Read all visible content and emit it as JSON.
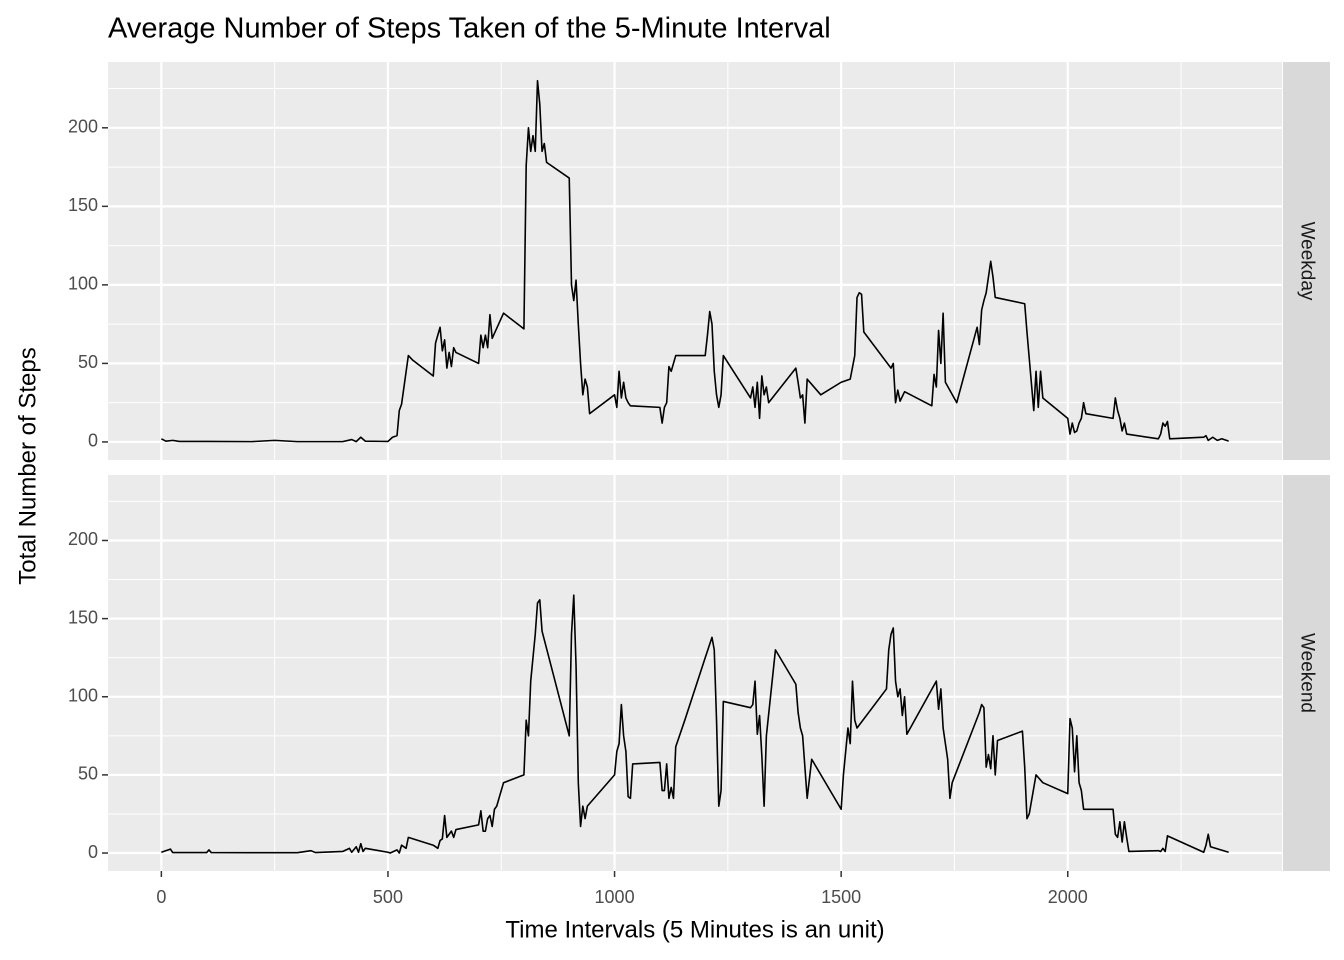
{
  "chart_data": {
    "type": "line",
    "title": "Average Number of Steps Taken of the 5-Minute Interval",
    "x_label": "Time Intervals (5 Minutes is an unit)",
    "y_label": "Total Number of Steps",
    "facet": "rows",
    "grid": true,
    "xlim": [
      -117.75,
      2472.75
    ],
    "xticks": [
      0,
      500,
      1000,
      1500,
      2000
    ],
    "ylim": [
      -11.5,
      241.9
    ],
    "yticks": [
      0,
      50,
      100,
      150,
      200
    ],
    "series": [
      {
        "name": "Weekday",
        "color": "#000000",
        "x": [
          0,
          10,
          25,
          40,
          100,
          200,
          250,
          300,
          400,
          420,
          430,
          440,
          450,
          500,
          510,
          520,
          525,
          530,
          545,
          555,
          600,
          605,
          615,
          620,
          625,
          630,
          635,
          640,
          645,
          650,
          700,
          705,
          710,
          715,
          720,
          725,
          730,
          755,
          800,
          805,
          810,
          815,
          820,
          825,
          830,
          835,
          840,
          845,
          850,
          900,
          905,
          910,
          915,
          920,
          925,
          930,
          935,
          940,
          945,
          1000,
          1005,
          1010,
          1015,
          1020,
          1025,
          1030,
          1035,
          1100,
          1105,
          1110,
          1115,
          1120,
          1125,
          1135,
          1155,
          1200,
          1205,
          1210,
          1215,
          1220,
          1225,
          1230,
          1235,
          1240,
          1300,
          1305,
          1310,
          1315,
          1320,
          1325,
          1330,
          1335,
          1340,
          1400,
          1405,
          1410,
          1415,
          1420,
          1425,
          1455,
          1500,
          1520,
          1530,
          1535,
          1540,
          1545,
          1550,
          1610,
          1615,
          1620,
          1625,
          1630,
          1640,
          1700,
          1705,
          1710,
          1715,
          1720,
          1725,
          1730,
          1755,
          1800,
          1805,
          1810,
          1815,
          1820,
          1830,
          1835,
          1840,
          1905,
          1910,
          1925,
          1930,
          1935,
          1940,
          1945,
          2000,
          2005,
          2010,
          2015,
          2020,
          2025,
          2030,
          2035,
          2040,
          2100,
          2105,
          2110,
          2115,
          2120,
          2125,
          2130,
          2200,
          2205,
          2210,
          2215,
          2220,
          2225,
          2300,
          2305,
          2310,
          2320,
          2330,
          2340,
          2355
        ],
        "values": [
          2,
          0.5,
          1,
          0.3,
          0.3,
          0.2,
          1,
          0.2,
          0.2,
          1.5,
          0.2,
          3,
          0.5,
          0.3,
          3,
          4,
          20,
          24,
          55,
          52,
          42,
          63,
          73,
          58,
          65,
          47,
          57,
          48,
          60,
          57,
          50,
          68,
          60,
          68,
          60,
          81,
          66,
          82,
          72,
          176,
          200,
          185,
          195,
          185,
          230,
          215,
          185,
          190,
          178,
          168,
          100,
          90,
          103,
          75,
          50,
          30,
          40,
          35,
          18,
          30,
          22,
          45,
          28,
          38,
          28,
          25,
          23,
          22,
          12,
          22,
          25,
          48,
          45,
          55,
          55,
          55,
          68,
          83,
          75,
          45,
          30,
          22,
          30,
          55,
          28,
          35,
          22,
          38,
          15,
          42,
          30,
          35,
          25,
          47,
          38,
          28,
          30,
          12,
          40,
          30,
          38,
          40,
          55,
          92,
          95,
          94,
          70,
          47,
          50,
          25,
          33,
          26,
          32,
          23,
          43,
          35,
          71,
          50,
          82,
          38,
          25,
          73,
          62,
          84,
          90,
          95,
          115,
          105,
          92,
          88,
          70,
          20,
          45,
          22,
          45,
          28,
          15,
          5,
          12,
          6,
          7,
          12,
          15,
          25,
          18,
          15,
          28,
          20,
          15,
          7,
          12,
          5,
          2,
          5,
          12,
          10,
          13,
          2,
          3,
          4,
          1,
          3,
          1,
          2,
          0.5
        ]
      },
      {
        "name": "Weekend",
        "color": "#000000",
        "x": [
          0,
          20,
          25,
          100,
          105,
          110,
          200,
          300,
          330,
          340,
          400,
          415,
          420,
          430,
          435,
          440,
          445,
          450,
          500,
          505,
          520,
          525,
          530,
          540,
          545,
          600,
          610,
          615,
          620,
          625,
          630,
          640,
          645,
          650,
          700,
          705,
          710,
          715,
          720,
          725,
          730,
          735,
          740,
          755,
          800,
          805,
          810,
          815,
          825,
          830,
          835,
          840,
          900,
          905,
          910,
          915,
          920,
          925,
          930,
          935,
          940,
          1000,
          1005,
          1010,
          1015,
          1020,
          1025,
          1030,
          1035,
          1040,
          1100,
          1105,
          1110,
          1115,
          1120,
          1125,
          1130,
          1135,
          1155,
          1200,
          1215,
          1220,
          1225,
          1230,
          1235,
          1240,
          1300,
          1305,
          1310,
          1315,
          1320,
          1325,
          1330,
          1335,
          1355,
          1400,
          1405,
          1410,
          1415,
          1425,
          1435,
          1500,
          1505,
          1510,
          1515,
          1520,
          1525,
          1530,
          1535,
          1600,
          1605,
          1610,
          1615,
          1620,
          1625,
          1630,
          1635,
          1640,
          1645,
          1710,
          1715,
          1720,
          1725,
          1730,
          1735,
          1740,
          1745,
          1805,
          1810,
          1815,
          1820,
          1825,
          1830,
          1835,
          1840,
          1845,
          1900,
          1905,
          1910,
          1915,
          1930,
          1945,
          2000,
          2005,
          2010,
          2015,
          2020,
          2025,
          2030,
          2035,
          2100,
          2105,
          2110,
          2115,
          2120,
          2125,
          2130,
          2135,
          2200,
          2205,
          2210,
          2215,
          2220,
          2300,
          2305,
          2310,
          2315,
          2355
        ],
        "values": [
          0.5,
          2.5,
          0.3,
          0.3,
          2,
          0.3,
          0.2,
          0.2,
          1.5,
          0.3,
          1,
          3,
          0.5,
          4,
          0.5,
          6,
          1,
          3,
          0.5,
          0,
          2,
          0,
          5,
          3,
          10,
          5,
          3,
          8,
          9,
          24,
          10,
          14,
          10,
          15,
          18,
          27,
          14,
          14,
          22,
          24,
          17,
          28,
          30,
          45,
          50,
          85,
          75,
          110,
          140,
          160,
          162,
          142,
          75,
          140,
          165,
          120,
          45,
          17,
          30,
          22,
          30,
          50,
          65,
          70,
          95,
          75,
          65,
          36,
          35,
          57,
          58,
          40,
          40,
          57,
          35,
          42,
          35,
          68,
          85,
          125,
          138,
          130,
          85,
          30,
          40,
          97,
          93,
          95,
          110,
          76,
          88,
          62,
          30,
          75,
          130,
          108,
          90,
          80,
          75,
          35,
          60,
          28,
          50,
          65,
          80,
          70,
          110,
          85,
          80,
          105,
          130,
          140,
          144,
          110,
          100,
          105,
          88,
          100,
          76,
          110,
          92,
          105,
          80,
          70,
          60,
          35,
          45,
          90,
          95,
          93,
          55,
          63,
          54,
          75,
          50,
          72,
          78,
          55,
          22,
          25,
          50,
          45,
          38,
          86,
          80,
          52,
          75,
          45,
          40,
          28,
          28,
          12,
          10,
          20,
          7,
          20,
          10,
          1,
          1.5,
          1,
          3,
          1,
          11,
          0.5,
          5,
          12,
          4,
          0.5
        ]
      }
    ]
  }
}
